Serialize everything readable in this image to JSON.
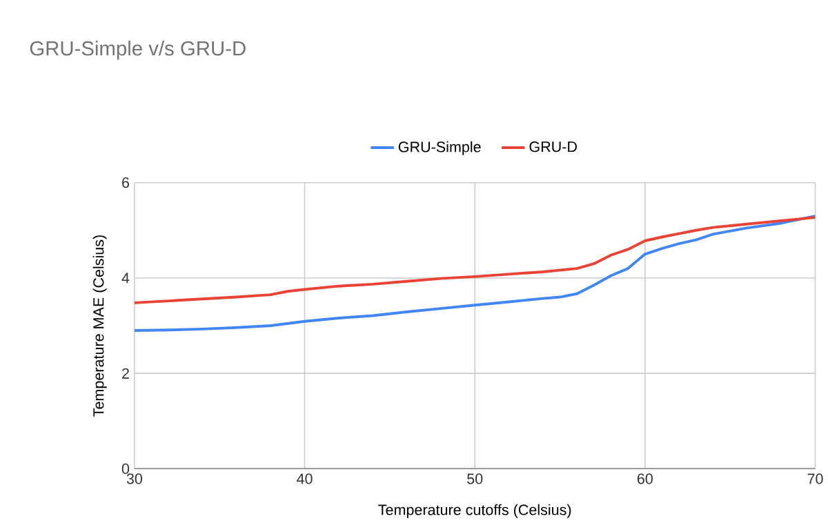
{
  "chart_data": {
    "type": "line",
    "title": "GRU-Simple v/s GRU-D",
    "xlabel": "Temperature cutoffs (Celsius)",
    "ylabel": "Temperature MAE (Celsius)",
    "xlim": [
      30,
      70
    ],
    "xticks": [
      30,
      40,
      50,
      60,
      70
    ],
    "ylim": [
      0,
      6
    ],
    "yticks": [
      0,
      2,
      4,
      6
    ],
    "grid": true,
    "legend": "top",
    "marker": "none",
    "line_style": "solid",
    "series": [
      {
        "name": "GRU-Simple",
        "color": "#4285f4",
        "x": [
          30,
          32,
          34,
          36,
          38,
          40,
          42,
          44,
          46,
          48,
          50,
          52,
          54,
          55,
          56,
          57,
          58,
          59,
          60,
          61,
          62,
          63,
          64,
          66,
          68,
          70
        ],
        "values": [
          2.9,
          2.91,
          2.93,
          2.96,
          3.0,
          3.09,
          3.16,
          3.21,
          3.29,
          3.36,
          3.43,
          3.5,
          3.57,
          3.6,
          3.67,
          3.85,
          4.05,
          4.2,
          4.5,
          4.62,
          4.72,
          4.8,
          4.92,
          5.05,
          5.15,
          5.3
        ]
      },
      {
        "name": "GRU-D",
        "color": "#ea4335",
        "x": [
          30,
          32,
          34,
          36,
          38,
          39,
          40,
          42,
          44,
          46,
          48,
          50,
          52,
          54,
          56,
          57,
          58,
          59,
          60,
          61,
          62,
          63,
          64,
          66,
          68,
          70
        ],
        "values": [
          3.48,
          3.52,
          3.56,
          3.6,
          3.65,
          3.72,
          3.76,
          3.83,
          3.87,
          3.93,
          3.99,
          4.03,
          4.08,
          4.13,
          4.2,
          4.3,
          4.48,
          4.6,
          4.78,
          4.86,
          4.93,
          5.0,
          5.06,
          5.13,
          5.2,
          5.27
        ]
      }
    ]
  }
}
